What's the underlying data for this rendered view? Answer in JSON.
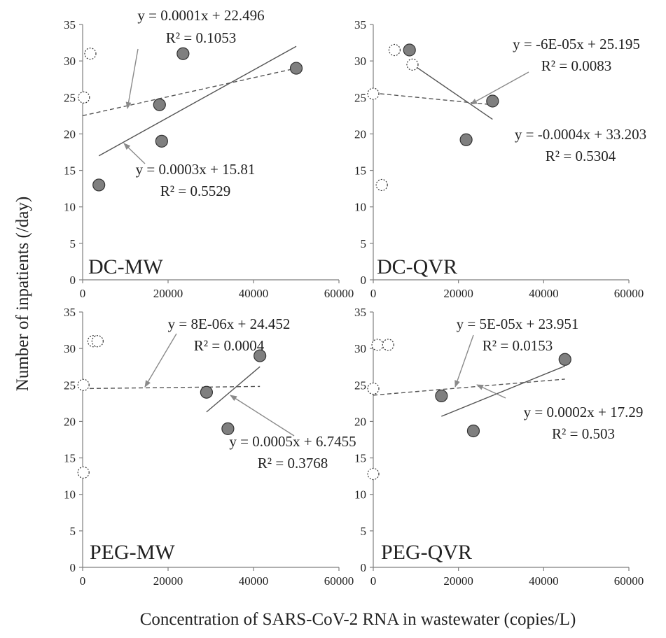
{
  "chart_data": {
    "type": "scatter",
    "xlabel": "Concentration of SARS-CoV-2 RNA in wastewater (copies/L)",
    "ylabel": "Number of inpatients (/day)",
    "xlim": [
      0,
      60000
    ],
    "ylim": [
      0,
      35
    ],
    "x_ticks": [
      "0",
      "20000",
      "40000",
      "60000"
    ],
    "y_ticks": [
      "0",
      "5",
      "10",
      "15",
      "20",
      "25",
      "30",
      "35"
    ],
    "grid": false,
    "marker_colors": {
      "filled": "#7f7f7f",
      "outline": "#333333",
      "open": "#ffffff"
    },
    "panels": [
      {
        "id": "dc-mw",
        "label": "DC-MW",
        "open_points": [
          {
            "x": 300,
            "y": 25
          },
          {
            "x": 1800,
            "y": 31
          }
        ],
        "filled_points": [
          {
            "x": 3800,
            "y": 13
          },
          {
            "x": 18000,
            "y": 24
          },
          {
            "x": 18500,
            "y": 19
          },
          {
            "x": 23500,
            "y": 31
          },
          {
            "x": 50000,
            "y": 29
          }
        ],
        "fits": [
          {
            "style": "dashed",
            "x": [
              0,
              50000
            ],
            "y": [
              22.5,
              29.0
            ],
            "eq": "y = 0.0001x + 22.496",
            "r2": "R² = 0.1053"
          },
          {
            "style": "solid",
            "x": [
              3800,
              50000
            ],
            "y": [
              17.0,
              32.0
            ],
            "eq": "y = 0.0003x + 15.81",
            "r2": "R² = 0.5529"
          }
        ]
      },
      {
        "id": "dc-qvr",
        "label": "DC-QVR",
        "open_points": [
          {
            "x": 0,
            "y": 25.5
          },
          {
            "x": 2000,
            "y": 13
          },
          {
            "x": 5000,
            "y": 31.5
          },
          {
            "x": 9200,
            "y": 29.5
          }
        ],
        "filled_points": [
          {
            "x": 8500,
            "y": 31.5
          },
          {
            "x": 21800,
            "y": 19.2
          },
          {
            "x": 28000,
            "y": 24.5
          }
        ],
        "fits": [
          {
            "style": "dashed",
            "x": [
              0,
              28000
            ],
            "y": [
              25.6,
              24.0
            ],
            "eq": "y = -6E-05x + 25.195",
            "r2": "R² = 0.0083"
          },
          {
            "style": "solid",
            "x": [
              8500,
              28000
            ],
            "y": [
              29.8,
              22.0
            ],
            "eq": "y = -0.0004x + 33.203",
            "r2": "R² = 0.5304"
          }
        ]
      },
      {
        "id": "peg-mw",
        "label": "PEG-MW",
        "open_points": [
          {
            "x": 200,
            "y": 25
          },
          {
            "x": 200,
            "y": 13
          },
          {
            "x": 2500,
            "y": 31
          },
          {
            "x": 3500,
            "y": 31
          }
        ],
        "filled_points": [
          {
            "x": 29000,
            "y": 24
          },
          {
            "x": 34000,
            "y": 19
          },
          {
            "x": 41500,
            "y": 29
          }
        ],
        "fits": [
          {
            "style": "dashed",
            "x": [
              0,
              41500
            ],
            "y": [
              24.5,
              24.8
            ],
            "eq": "y = 8E-06x + 24.452",
            "r2": "R² = 0.0004"
          },
          {
            "style": "solid",
            "x": [
              29000,
              41500
            ],
            "y": [
              21.3,
              27.5
            ],
            "eq": "y = 0.0005x + 6.7455",
            "r2": "R² = 0.3768"
          }
        ]
      },
      {
        "id": "peg-qvr",
        "label": "PEG-QVR",
        "open_points": [
          {
            "x": 0,
            "y": 24.5
          },
          {
            "x": 1000,
            "y": 30.5
          },
          {
            "x": 3500,
            "y": 30.5
          },
          {
            "x": 0,
            "y": 12.8
          }
        ],
        "filled_points": [
          {
            "x": 16000,
            "y": 23.5
          },
          {
            "x": 23500,
            "y": 18.7
          },
          {
            "x": 45000,
            "y": 28.5
          }
        ],
        "fits": [
          {
            "style": "dashed",
            "x": [
              0,
              45000
            ],
            "y": [
              23.6,
              25.8
            ],
            "eq": "y = 5E-05x + 23.951",
            "r2": "R² = 0.0153"
          },
          {
            "style": "solid",
            "x": [
              16000,
              45000
            ],
            "y": [
              20.7,
              27.6
            ],
            "eq": "y = 0.0002x + 17.29",
            "r2": "R² = 0.503"
          }
        ]
      }
    ]
  }
}
